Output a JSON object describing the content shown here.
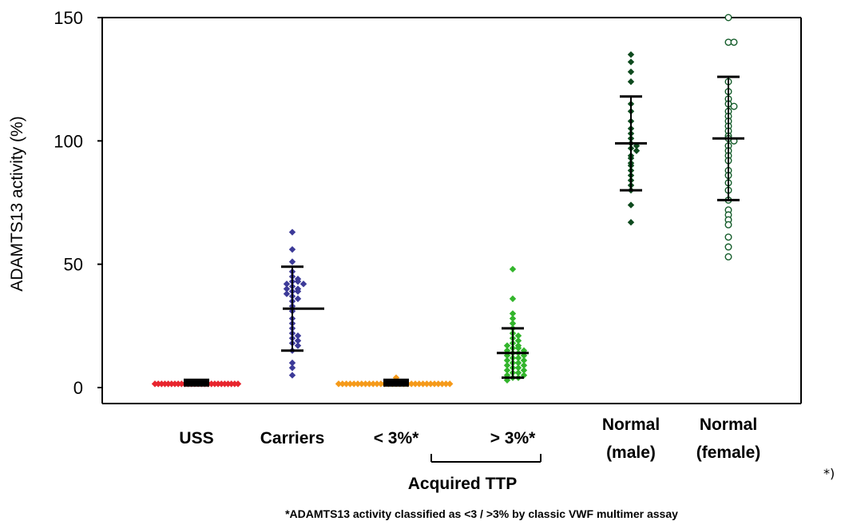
{
  "chart_data": {
    "type": "scatter",
    "ylabel": "ADAMTS13 activity (%)",
    "ylim": [
      0,
      150
    ],
    "yticks": [
      "0",
      "50",
      "100",
      "150"
    ],
    "grid": false,
    "categories": [
      {
        "label": "USS",
        "label2": ""
      },
      {
        "label": "Carriers",
        "label2": ""
      },
      {
        "label": "< 3%*",
        "label2": ""
      },
      {
        "label": "> 3%*",
        "label2": ""
      },
      {
        "label": "Normal",
        "label2": "(male)"
      },
      {
        "label": "Normal",
        "label2": "(female)"
      }
    ],
    "group_bracket_label": "Acquired TTP",
    "footnote": "*ADAMTS13 activity classified as <3 / >3% by classic VWF multimer assay",
    "corner_mark": "*)",
    "series": [
      {
        "color": "#e8252e",
        "marker": "diamond-filled",
        "mean": 2,
        "sd": null,
        "values": [
          1.5,
          1.5,
          1.5,
          1.5,
          1.5,
          1.5,
          1.5,
          1.5,
          1.5,
          1.5,
          1.5,
          1.5,
          1.5,
          1.5,
          1.5,
          1.5,
          1.5,
          1.5,
          1.5,
          1.5,
          1.5,
          1.5,
          1.5,
          1.5,
          1.5,
          1.5
        ]
      },
      {
        "color": "#3c3a98",
        "marker": "diamond-filled",
        "mean": 32,
        "sd": 17,
        "values": [
          63,
          56,
          51,
          47,
          45,
          44,
          43,
          43,
          42,
          42,
          41,
          40,
          40,
          39,
          39,
          38,
          37,
          36,
          35,
          33,
          31,
          28,
          26,
          24,
          22,
          21,
          20,
          19,
          18,
          17,
          15,
          10,
          8,
          5
        ]
      },
      {
        "color": "#f59a1a",
        "marker": "diamond-filled",
        "mean": 2,
        "sd": null,
        "values": [
          1.5,
          1.5,
          1.5,
          1.5,
          1.5,
          1.5,
          1.5,
          1.5,
          1.5,
          1.5,
          1.5,
          1.5,
          1.5,
          1.5,
          1.5,
          1.5,
          1.5,
          1.5,
          1.5,
          1.5,
          1.5,
          1.5,
          1.5,
          1.5,
          1.5,
          1.5,
          1.5,
          1.5,
          1.5,
          1.5,
          4
        ]
      },
      {
        "color": "#33b52c",
        "marker": "diamond-filled",
        "mean": 14,
        "sd": 10,
        "values": [
          48,
          36,
          30,
          28,
          26,
          24,
          22,
          21,
          20,
          19,
          18,
          17,
          17,
          16,
          16,
          15,
          15,
          14,
          14,
          13,
          13,
          12,
          12,
          11,
          11,
          10,
          10,
          9,
          9,
          8,
          8,
          7,
          7,
          6,
          6,
          5,
          5,
          4,
          4,
          3
        ]
      },
      {
        "color": "#0e4a1e",
        "marker": "diamond-filled",
        "mean": 99,
        "sd": 19,
        "values": [
          135,
          132,
          128,
          124,
          115,
          112,
          108,
          105,
          103,
          101,
          99,
          98,
          97,
          96,
          94,
          93,
          91,
          90,
          88,
          86,
          84,
          82,
          80,
          74,
          67
        ]
      },
      {
        "color": "#145c2a",
        "marker": "circle-open",
        "mean": 101,
        "sd": 25,
        "values": [
          150,
          140,
          140,
          124,
          120,
          117,
          115,
          114,
          112,
          110,
          108,
          106,
          104,
          102,
          101,
          100,
          98,
          96,
          94,
          92,
          88,
          86,
          83,
          80,
          76,
          72,
          70,
          68,
          66,
          61,
          57,
          53
        ]
      }
    ]
  }
}
